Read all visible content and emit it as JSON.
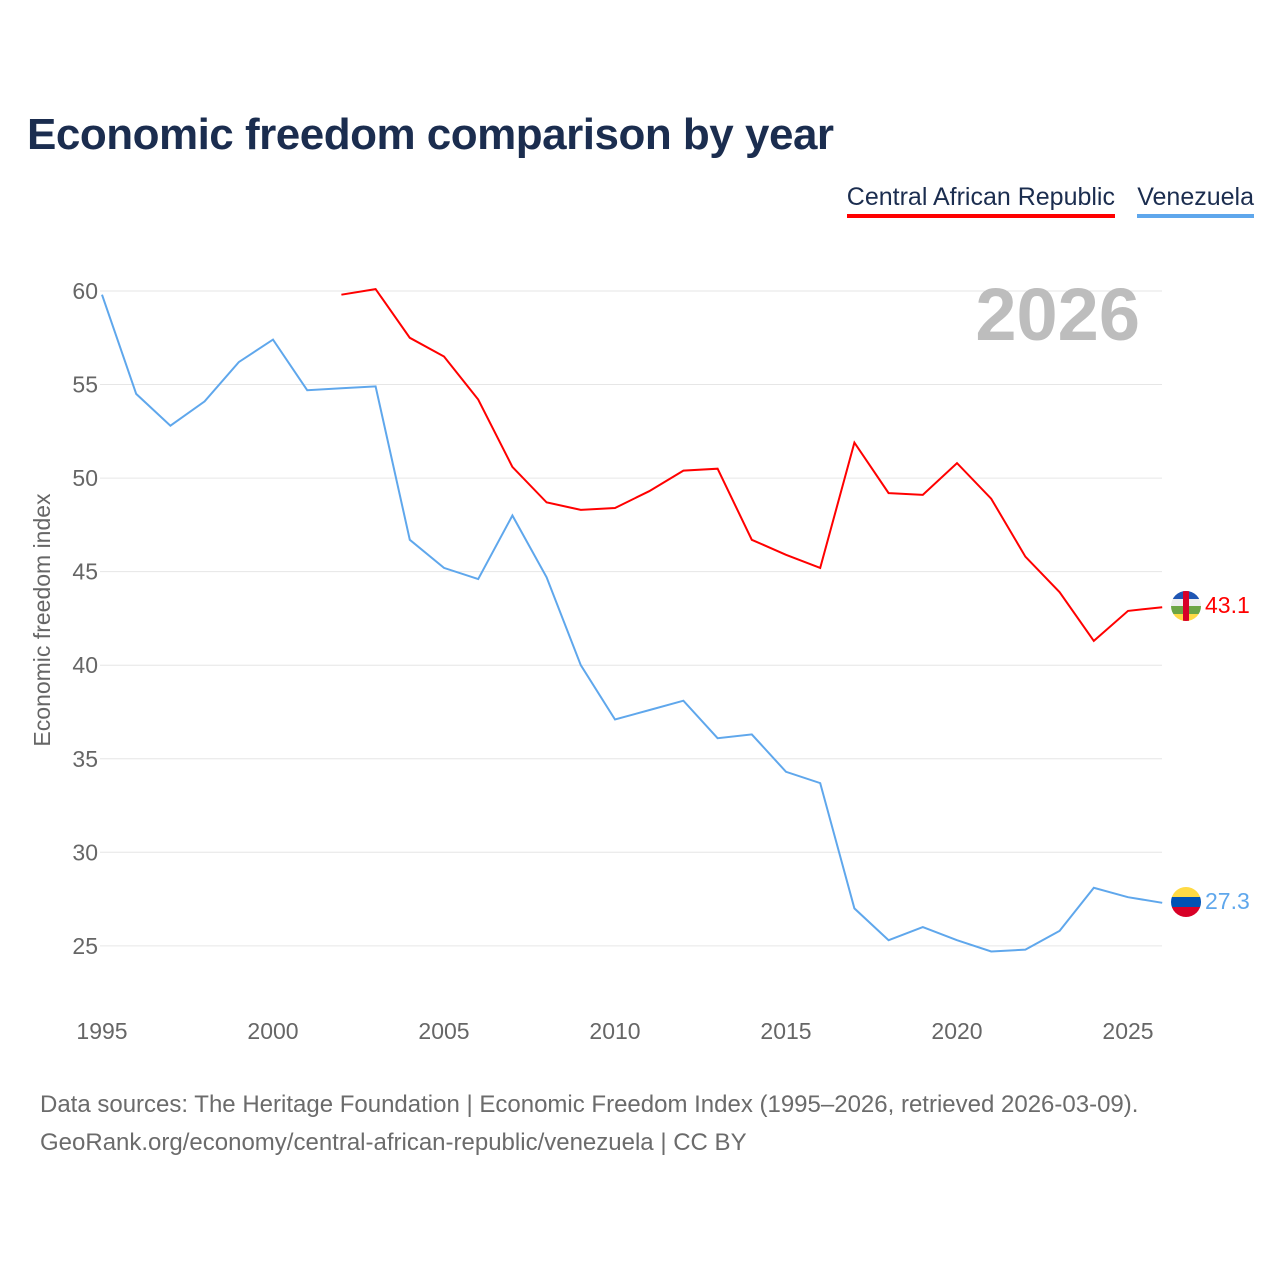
{
  "chart_data": {
    "type": "line",
    "title": "Economic freedom comparison by year",
    "ylabel": "Economic freedom index",
    "xlabel": "",
    "xlim": [
      1995,
      2026
    ],
    "ylim": [
      22.5,
      61
    ],
    "x_ticks": [
      1995,
      2000,
      2005,
      2010,
      2015,
      2020,
      2025
    ],
    "y_ticks": [
      25,
      30,
      35,
      40,
      45,
      50,
      55,
      60
    ],
    "grid": true,
    "legend_position": "top-right",
    "year_watermark": "2026",
    "series": [
      {
        "name": "Central African Republic",
        "color": "#ff0000",
        "end_label": "43.1",
        "x": [
          2002,
          2003,
          2004,
          2005,
          2006,
          2007,
          2008,
          2009,
          2010,
          2011,
          2012,
          2013,
          2014,
          2015,
          2016,
          2017,
          2018,
          2019,
          2020,
          2021,
          2022,
          2023,
          2024,
          2025,
          2026
        ],
        "values": [
          59.8,
          60.1,
          57.5,
          56.5,
          54.2,
          50.6,
          48.7,
          48.3,
          48.4,
          49.3,
          50.4,
          50.5,
          46.7,
          45.9,
          45.2,
          51.9,
          49.2,
          49.1,
          50.8,
          48.9,
          45.8,
          43.9,
          41.3,
          42.9,
          43.1
        ]
      },
      {
        "name": "Venezuela",
        "color": "#5fa7ec",
        "end_label": "27.3",
        "x": [
          1995,
          1996,
          1997,
          1998,
          1999,
          2000,
          2001,
          2002,
          2003,
          2004,
          2005,
          2006,
          2007,
          2008,
          2009,
          2010,
          2011,
          2012,
          2013,
          2014,
          2015,
          2016,
          2017,
          2018,
          2019,
          2020,
          2021,
          2022,
          2023,
          2024,
          2025,
          2026
        ],
        "values": [
          59.8,
          54.5,
          52.8,
          54.1,
          56.2,
          57.4,
          54.7,
          54.8,
          54.9,
          46.7,
          45.2,
          44.6,
          48.0,
          44.7,
          40.0,
          37.1,
          37.6,
          38.1,
          36.1,
          36.3,
          34.3,
          33.7,
          27.0,
          25.3,
          26.0,
          25.3,
          24.7,
          24.8,
          25.8,
          28.1,
          27.6,
          27.3
        ]
      }
    ]
  },
  "footer": {
    "line1": "Data sources: The Heritage Foundation | Economic Freedom Index (1995–2026, retrieved 2026-03-09).",
    "line2": "GeoRank.org/economy/central-african-republic/venezuela | CC BY"
  }
}
